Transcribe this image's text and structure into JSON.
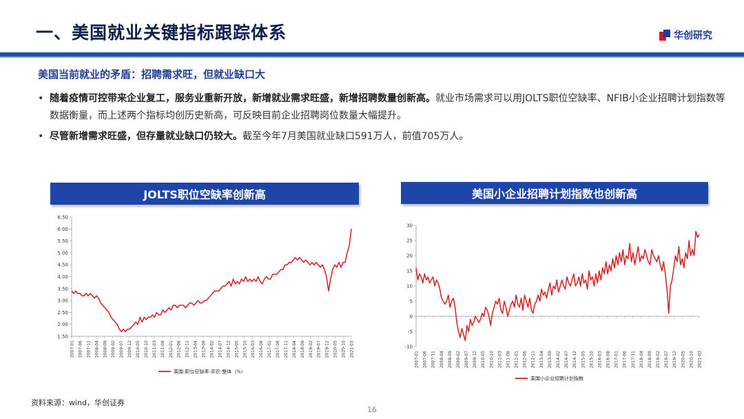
{
  "header": {
    "title": "一、美国就业关键指标跟踪体系",
    "logo_text": "华创研究"
  },
  "subtitle": "美国当前就业的矛盾：招聘需求旺，但就业缺口大",
  "bullets": [
    {
      "bold": "随着疫情可控带来企业复工，服务业重新开放，新增就业需求旺盛，新增招聘数量创新高。",
      "text": "就业市场需求可以用JOLTS职位空缺率、NFIB小企业招聘计划指数等数据衡量，而上述两个指标均创历史新高，可反映目前企业招聘岗位数量大幅提升。"
    },
    {
      "bold": "尽管新增需求旺盛，但存量就业缺口仍较大。",
      "text": "截至今年7月美国就业缺口591万人，前值705万人。"
    }
  ],
  "source": "资料来源：wind，华创证券",
  "page_number": "16",
  "colors": {
    "line": "#d42020",
    "header_bg": "#1d46a8",
    "title": "#0d1f4d"
  },
  "chart_data": [
    {
      "type": "line",
      "title": "JOLTS职位空缺率创新高",
      "legend": "美国:职位空缺率:非农:整体（%）",
      "ylim": [
        1.5,
        6.5
      ],
      "yticks": [
        "1.50",
        "2.00",
        "2.50",
        "3.00",
        "3.50",
        "4.00",
        "4.50",
        "5.00",
        "5.50",
        "6.00",
        "6.50"
      ],
      "xticks": [
        "2007-01",
        "2007-06",
        "2007-11",
        "2008-04",
        "2008-09",
        "2009-02",
        "2009-07",
        "2009-12",
        "2010-05",
        "2010-10",
        "2011-03",
        "2011-08",
        "2012-01",
        "2012-06",
        "2012-11",
        "2013-04",
        "2013-09",
        "2014-02",
        "2014-07",
        "2014-12",
        "2015-05",
        "2015-10",
        "2016-03",
        "2016-08",
        "2017-01",
        "2017-06",
        "2017-11",
        "2018-04",
        "2018-09",
        "2019-02",
        "2019-07",
        "2019-12",
        "2020-05",
        "2020-10",
        "2021-03"
      ],
      "series": [
        {
          "values": [
            3.4,
            3.3,
            3.4,
            3.3,
            3.3,
            3.2,
            3.2,
            3.3,
            3.2,
            3.3,
            3.2,
            3.1,
            3.2,
            3.1,
            2.9,
            2.8,
            2.7,
            2.6,
            2.5,
            2.3,
            2.2,
            2.1,
            2.0,
            1.8,
            1.7,
            1.8,
            1.7,
            1.8,
            1.8,
            1.9,
            2.0,
            2.1,
            2.0,
            2.3,
            2.1,
            2.3,
            2.2,
            2.3,
            2.3,
            2.4,
            2.3,
            2.5,
            2.4,
            2.4,
            2.6,
            2.5,
            2.6,
            2.7,
            2.6,
            2.8,
            2.8,
            2.7,
            2.8,
            2.8,
            2.8,
            2.7,
            2.8,
            2.9,
            2.9,
            2.8,
            2.9,
            3.0,
            2.9,
            2.9,
            3.0,
            3.0,
            3.1,
            3.2,
            3.3,
            3.4,
            3.4,
            3.4,
            3.5,
            3.6,
            3.6,
            3.7,
            3.8,
            3.6,
            3.9,
            3.7,
            3.8,
            3.7,
            3.9,
            3.8,
            4.0,
            3.8,
            3.9,
            3.8,
            3.9,
            3.8,
            4.0,
            3.8,
            3.7,
            3.9,
            4.0,
            3.9,
            3.9,
            4.1,
            4.1,
            4.1,
            4.2,
            4.3,
            4.3,
            4.5,
            4.5,
            4.6,
            4.6,
            4.7,
            4.8,
            4.7,
            4.8,
            4.7,
            4.6,
            4.7,
            4.6,
            4.5,
            4.6,
            4.5,
            4.6,
            4.5,
            4.4,
            4.5,
            4.3,
            4.0,
            3.4,
            3.9,
            4.3,
            4.5,
            4.4,
            4.6,
            4.4,
            4.6,
            4.6,
            5.0,
            5.3,
            6.0
          ]
        }
      ]
    },
    {
      "type": "line",
      "title": "美国小企业招聘计划指数也创新高",
      "legend": "美国小企业招聘计划指数",
      "ylim": [
        -10,
        30
      ],
      "yticks": [
        "-10",
        "-5",
        "0",
        "5",
        "10",
        "15",
        "20",
        "25",
        "30"
      ],
      "xticks": [
        "2007-01",
        "2007-06",
        "2007-11",
        "2008-04",
        "2008-09",
        "2009-02",
        "2009-07",
        "2009-12",
        "2010-05",
        "2010-10",
        "2011-03",
        "2011-08",
        "2012-01",
        "2012-06",
        "2012-11",
        "2013-04",
        "2013-09",
        "2014-02",
        "2014-07",
        "2014-12",
        "2015-05",
        "2015-10",
        "2016-03",
        "2016-08",
        "2017-01",
        "2017-06",
        "2017-11",
        "2018-04",
        "2018-09",
        "2019-02",
        "2019-07",
        "2019-12",
        "2020-05",
        "2020-10",
        "2021-03"
      ],
      "series": [
        {
          "values": [
            16,
            12,
            14,
            13,
            11,
            14,
            12,
            13,
            11,
            12,
            13,
            10,
            12,
            11,
            9,
            6,
            5,
            4,
            5,
            7,
            3,
            5,
            6,
            3,
            -2,
            -5,
            -7,
            -4,
            -6,
            -8,
            -3,
            -5,
            -1,
            -3,
            -2,
            0,
            -1,
            -2,
            -1,
            1,
            0,
            3,
            2,
            0,
            -3,
            1,
            3,
            5,
            4,
            6,
            2,
            1,
            5,
            3,
            0,
            2,
            4,
            5,
            3,
            7,
            4,
            3,
            6,
            2,
            7,
            5,
            3,
            6,
            2,
            1,
            4,
            5,
            7,
            5,
            9,
            7,
            8,
            6,
            9,
            11,
            7,
            10,
            9,
            12,
            8,
            10,
            12,
            10,
            9,
            13,
            11,
            10,
            12,
            14,
            10,
            11,
            13,
            10,
            14,
            11,
            12,
            9,
            15,
            12,
            13,
            10,
            14,
            11,
            15,
            12,
            16,
            14,
            18,
            14,
            17,
            15,
            19,
            16,
            20,
            17,
            21,
            18,
            22,
            17,
            20,
            19,
            24,
            18,
            21,
            17,
            20,
            23,
            18,
            20,
            19,
            22,
            20,
            18,
            17,
            22,
            20,
            19,
            18,
            20,
            17,
            15,
            18,
            14,
            9,
            1,
            10,
            12,
            16,
            20,
            18,
            23,
            17,
            19,
            16,
            21,
            19,
            25,
            20,
            22,
            20,
            28,
            26,
            27
          ]
        }
      ]
    }
  ]
}
